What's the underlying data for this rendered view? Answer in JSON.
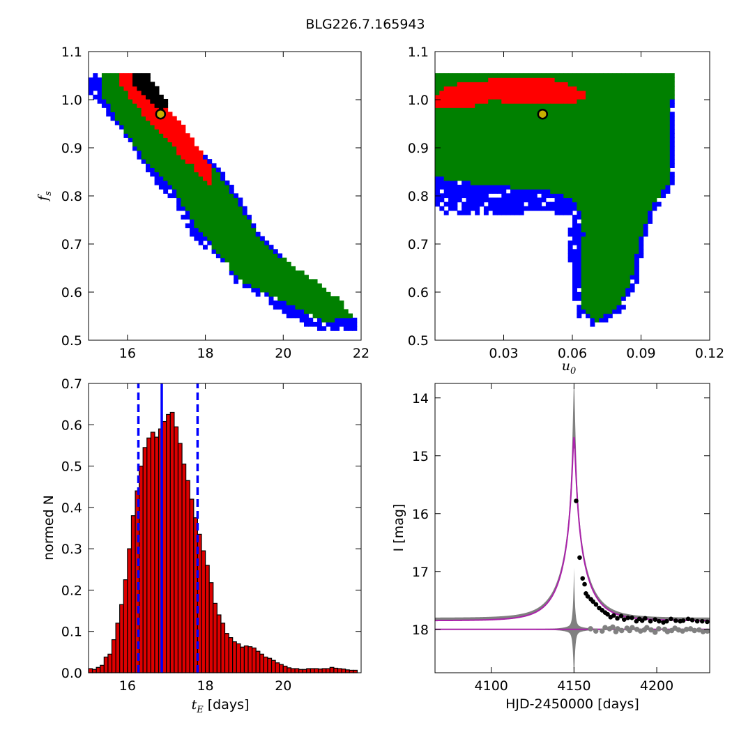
{
  "title": "BLG226.7.165943",
  "colors": {
    "c1": "#0000ff",
    "c2": "#008000",
    "c3": "#ff0000",
    "c4": "#000000",
    "bar": "#dd0000",
    "model": "#aa22aa",
    "band": "#808080",
    "marker": "#c8b000"
  },
  "chart_data": [
    {
      "type": "heatmap",
      "name": "fs-vs-tE",
      "xlim": [
        15,
        22
      ],
      "ylim": [
        0.5,
        1.1
      ],
      "xticks": [
        "16",
        "18",
        "20",
        "22"
      ],
      "xtick_values": [
        16,
        18,
        20,
        22
      ],
      "yticks": [
        "0.5",
        "0.6",
        "0.7",
        "0.8",
        "0.9",
        "1.0",
        "1.1"
      ],
      "ytick_values": [
        0.5,
        0.6,
        0.7,
        0.8,
        0.9,
        1.0,
        1.1
      ],
      "ylabel": "f",
      "ylabel_sub": "s",
      "best_fit": {
        "x": 16.85,
        "y": 0.97
      },
      "levels": [
        {
          "level": 1,
          "color": "#0000ff",
          "polygon": [
            [
              15.0,
              1.055
            ],
            [
              16.0,
              1.055
            ],
            [
              16.6,
              0.97
            ],
            [
              17.2,
              0.93
            ],
            [
              17.8,
              0.9
            ],
            [
              18.4,
              0.85
            ],
            [
              18.9,
              0.8
            ],
            [
              19.4,
              0.72
            ],
            [
              20.1,
              0.66
            ],
            [
              21.0,
              0.6
            ],
            [
              21.8,
              0.55
            ],
            [
              21.95,
              0.52
            ],
            [
              21.0,
              0.52
            ],
            [
              20.3,
              0.54
            ],
            [
              19.4,
              0.59
            ],
            [
              18.8,
              0.62
            ],
            [
              18.4,
              0.67
            ],
            [
              17.7,
              0.71
            ],
            [
              17.2,
              0.79
            ],
            [
              16.7,
              0.83
            ],
            [
              16.3,
              0.88
            ],
            [
              15.9,
              0.93
            ],
            [
              15.4,
              0.98
            ],
            [
              15.0,
              1.02
            ]
          ]
        },
        {
          "level": 2,
          "color": "#008000",
          "polygon": [
            [
              15.3,
              1.055
            ],
            [
              16.2,
              1.055
            ],
            [
              16.7,
              0.99
            ],
            [
              17.3,
              0.94
            ],
            [
              18.0,
              0.88
            ],
            [
              18.5,
              0.83
            ],
            [
              18.9,
              0.78
            ],
            [
              19.4,
              0.71
            ],
            [
              20.0,
              0.67
            ],
            [
              20.7,
              0.63
            ],
            [
              21.5,
              0.58
            ],
            [
              21.8,
              0.545
            ],
            [
              21.0,
              0.54
            ],
            [
              20.3,
              0.57
            ],
            [
              19.5,
              0.6
            ],
            [
              18.8,
              0.63
            ],
            [
              18.5,
              0.67
            ],
            [
              17.9,
              0.72
            ],
            [
              17.3,
              0.8
            ],
            [
              16.8,
              0.85
            ],
            [
              16.4,
              0.88
            ],
            [
              15.9,
              0.94
            ],
            [
              15.5,
              0.99
            ],
            [
              15.3,
              1.02
            ]
          ]
        },
        {
          "level": 3,
          "color": "#ff0000",
          "polygon": [
            [
              15.75,
              1.055
            ],
            [
              16.45,
              1.055
            ],
            [
              16.8,
              1.0
            ],
            [
              17.3,
              0.96
            ],
            [
              17.8,
              0.9
            ],
            [
              18.2,
              0.86
            ],
            [
              18.1,
              0.82
            ],
            [
              17.7,
              0.86
            ],
            [
              17.3,
              0.89
            ],
            [
              16.9,
              0.93
            ],
            [
              16.5,
              0.96
            ],
            [
              16.1,
              1.0
            ],
            [
              15.75,
              1.04
            ]
          ]
        },
        {
          "level": 4,
          "color": "#000000",
          "polygon": [
            [
              16.1,
              1.055
            ],
            [
              16.5,
              1.055
            ],
            [
              16.8,
              1.02
            ],
            [
              17.05,
              0.99
            ],
            [
              16.9,
              0.97
            ],
            [
              16.65,
              0.99
            ],
            [
              16.3,
              1.02
            ],
            [
              16.1,
              1.04
            ]
          ]
        }
      ]
    },
    {
      "type": "heatmap",
      "name": "fs-vs-u0",
      "xlabel": "u",
      "xlabel_sub": "0",
      "xlim": [
        0.0,
        0.12
      ],
      "ylim": [
        0.5,
        1.1
      ],
      "xticks": [
        "0.03",
        "0.06",
        "0.09",
        "0.12"
      ],
      "xtick_values": [
        0.03,
        0.06,
        0.09,
        0.12
      ],
      "yticks": [
        "0.5",
        "0.6",
        "0.7",
        "0.8",
        "0.9",
        "1.0",
        "1.1"
      ],
      "ytick_values": [
        0.5,
        0.6,
        0.7,
        0.8,
        0.9,
        1.0,
        1.1
      ],
      "best_fit": {
        "x": 0.047,
        "y": 0.97
      },
      "levels": [
        {
          "level": 1,
          "color": "#0000ff",
          "polygon": [
            [
              0.0,
              1.055
            ],
            [
              0.105,
              1.055
            ],
            [
              0.105,
              0.83
            ],
            [
              0.098,
              0.78
            ],
            [
              0.092,
              0.72
            ],
            [
              0.088,
              0.62
            ],
            [
              0.082,
              0.56
            ],
            [
              0.07,
              0.53
            ],
            [
              0.062,
              0.55
            ],
            [
              0.06,
              0.62
            ],
            [
              0.058,
              0.7
            ],
            [
              0.06,
              0.76
            ],
            [
              0.045,
              0.77
            ],
            [
              0.03,
              0.76
            ],
            [
              0.01,
              0.76
            ],
            [
              0.0,
              0.77
            ]
          ]
        },
        {
          "level": 2,
          "color": "#008000",
          "polygon": [
            [
              0.0,
              1.055
            ],
            [
              0.104,
              1.055
            ],
            [
              0.102,
              0.83
            ],
            [
              0.095,
              0.78
            ],
            [
              0.09,
              0.72
            ],
            [
              0.086,
              0.63
            ],
            [
              0.08,
              0.57
            ],
            [
              0.07,
              0.54
            ],
            [
              0.063,
              0.57
            ],
            [
              0.063,
              0.64
            ],
            [
              0.065,
              0.72
            ],
            [
              0.062,
              0.79
            ],
            [
              0.05,
              0.81
            ],
            [
              0.03,
              0.82
            ],
            [
              0.01,
              0.83
            ],
            [
              0.0,
              0.84
            ]
          ]
        },
        {
          "level": 3,
          "color": "#ff0000",
          "polygon": [
            [
              0.0,
              1.01
            ],
            [
              0.005,
              1.03
            ],
            [
              0.02,
              1.04
            ],
            [
              0.035,
              1.05
            ],
            [
              0.05,
              1.045
            ],
            [
              0.065,
              1.02
            ],
            [
              0.065,
              1.0
            ],
            [
              0.052,
              0.99
            ],
            [
              0.04,
              0.99
            ],
            [
              0.025,
              1.0
            ],
            [
              0.012,
              0.98
            ],
            [
              0.0,
              0.98
            ]
          ]
        }
      ]
    },
    {
      "type": "bar",
      "name": "tE-histogram",
      "xlabel": "t",
      "xlabel_sub": "E",
      "xlabel_suffix": " [days]",
      "ylabel": "normed N",
      "xlim": [
        15,
        22
      ],
      "ylim": [
        0,
        0.7
      ],
      "bin_start": 15.0,
      "bin_width": 0.1,
      "xticks": [
        "16",
        "18",
        "20"
      ],
      "xtick_values": [
        16,
        18,
        20
      ],
      "yticks": [
        "0.0",
        "0.1",
        "0.2",
        "0.3",
        "0.4",
        "0.5",
        "0.6",
        "0.7"
      ],
      "ytick_values": [
        0,
        0.1,
        0.2,
        0.3,
        0.4,
        0.5,
        0.6,
        0.7
      ],
      "values": [
        0.01,
        0.008,
        0.013,
        0.018,
        0.038,
        0.045,
        0.08,
        0.12,
        0.165,
        0.225,
        0.3,
        0.38,
        0.44,
        0.5,
        0.545,
        0.568,
        0.582,
        0.57,
        0.59,
        0.608,
        0.625,
        0.63,
        0.595,
        0.555,
        0.505,
        0.465,
        0.42,
        0.375,
        0.335,
        0.295,
        0.26,
        0.218,
        0.168,
        0.14,
        0.12,
        0.095,
        0.085,
        0.075,
        0.07,
        0.062,
        0.065,
        0.063,
        0.06,
        0.052,
        0.045,
        0.038,
        0.035,
        0.03,
        0.024,
        0.02,
        0.016,
        0.012,
        0.01,
        0.01,
        0.008,
        0.008,
        0.01,
        0.01,
        0.01,
        0.009,
        0.01,
        0.01,
        0.013,
        0.011,
        0.01,
        0.009,
        0.007,
        0.006,
        0.006
      ],
      "vlines": [
        {
          "x": 16.28,
          "style": "dashed"
        },
        {
          "x": 16.88,
          "style": "solid"
        },
        {
          "x": 17.8,
          "style": "dashed"
        }
      ]
    },
    {
      "type": "line",
      "name": "light-curve",
      "xlabel": "HJD-2450000 [days]",
      "ylabel": "I [mag]",
      "xlim": [
        4066,
        4232
      ],
      "ylim": [
        18.75,
        13.75
      ],
      "xticks": [
        "4100",
        "4150",
        "4200"
      ],
      "xtick_values": [
        4100,
        4150,
        4200
      ],
      "yticks": [
        "14",
        "15",
        "16",
        "17",
        "18"
      ],
      "ytick_values": [
        14,
        15,
        16,
        17,
        18
      ],
      "model": {
        "t0": 4150.0,
        "tE": 16.9,
        "u0": 0.047,
        "baseline": 17.85,
        "peak": 14.68
      },
      "residual_baseline": 18.0,
      "points": [
        [
          4151.3,
          15.78
        ],
        [
          4153.4,
          16.76
        ],
        [
          4155.2,
          17.12
        ],
        [
          4156.4,
          17.22
        ],
        [
          4157.2,
          17.38
        ],
        [
          4158.3,
          17.43
        ],
        [
          4160.2,
          17.48
        ],
        [
          4161.5,
          17.52
        ],
        [
          4163.3,
          17.57
        ],
        [
          4165.2,
          17.63
        ],
        [
          4167.0,
          17.67
        ],
        [
          4168.8,
          17.71
        ],
        [
          4170.3,
          17.74
        ],
        [
          4172.1,
          17.79
        ],
        [
          4174.0,
          17.76
        ],
        [
          4176.2,
          17.81
        ],
        [
          4178.5,
          17.77
        ],
        [
          4180.3,
          17.83
        ],
        [
          4182.6,
          17.8
        ],
        [
          4185.0,
          17.8
        ],
        [
          4187.7,
          17.86
        ],
        [
          4189.5,
          17.82
        ],
        [
          4191.2,
          17.85
        ],
        [
          4193.0,
          17.81
        ],
        [
          4196.2,
          17.86
        ],
        [
          4199.0,
          17.83
        ],
        [
          4201.4,
          17.86
        ],
        [
          4204.0,
          17.88
        ],
        [
          4206.0,
          17.86
        ],
        [
          4208.6,
          17.82
        ],
        [
          4211.5,
          17.85
        ],
        [
          4214.2,
          17.86
        ],
        [
          4216.0,
          17.85
        ],
        [
          4219.0,
          17.82
        ],
        [
          4221.5,
          17.84
        ],
        [
          4224.5,
          17.86
        ],
        [
          4227.5,
          17.86
        ],
        [
          4230.5,
          17.87
        ]
      ],
      "residual_points": [
        [
          4160.0,
          17.99
        ],
        [
          4163.2,
          18.03
        ],
        [
          4167.0,
          18.03
        ],
        [
          4168.8,
          17.97
        ],
        [
          4171.5,
          17.99
        ],
        [
          4173.4,
          17.96
        ],
        [
          4175.3,
          18.04
        ],
        [
          4176.4,
          17.99
        ],
        [
          4178.8,
          18.02
        ],
        [
          4182.0,
          17.98
        ],
        [
          4183.6,
          18.02
        ],
        [
          4185.2,
          17.97
        ],
        [
          4188.0,
          18.0
        ],
        [
          4190.2,
          18.03
        ],
        [
          4192.5,
          18.01
        ],
        [
          4194.0,
          17.97
        ],
        [
          4196.6,
          18.01
        ],
        [
          4199.0,
          18.05
        ],
        [
          4201.2,
          17.99
        ],
        [
          4204.8,
          18.0
        ],
        [
          4206.5,
          18.04
        ],
        [
          4209.0,
          18.02
        ],
        [
          4211.0,
          17.98
        ],
        [
          4213.2,
          18.01
        ],
        [
          4215.6,
          18.03
        ],
        [
          4218.0,
          18.0
        ],
        [
          4220.4,
          17.99
        ],
        [
          4222.8,
          18.02
        ],
        [
          4225.6,
          18.01
        ],
        [
          4228.0,
          18.04
        ],
        [
          4230.6,
          18.03
        ]
      ]
    }
  ]
}
